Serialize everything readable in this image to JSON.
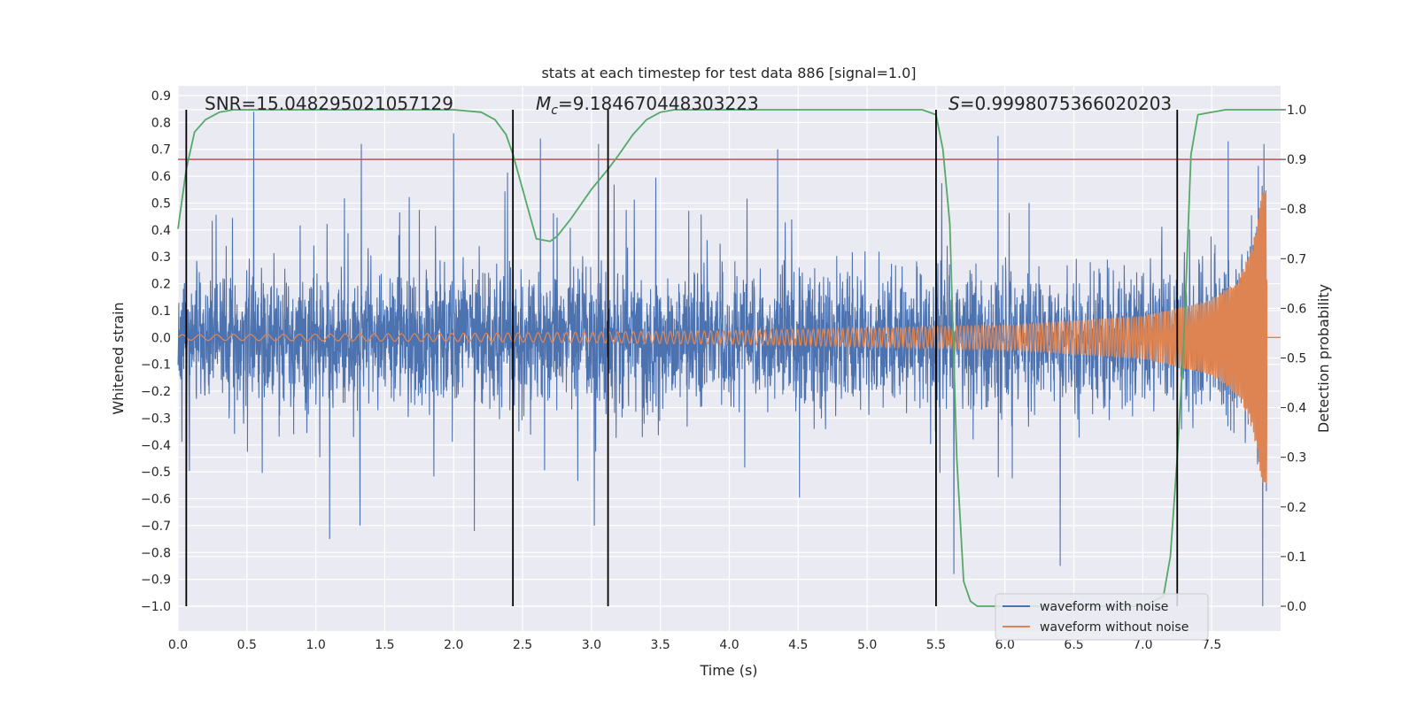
{
  "chart_data": {
    "type": "line",
    "title": "stats at each timestep for test data 886 [signal=1.0]",
    "xlabel": "Time (s)",
    "ylabel": "Whitened strain",
    "ylabel_right": "Detection probability",
    "xlim": [
      0.0,
      8.0
    ],
    "ylim": [
      -1.0,
      1.0
    ],
    "ylim_right": [
      0.0,
      1.0
    ],
    "x_ticks": [
      "0.0",
      "0.5",
      "1.0",
      "1.5",
      "2.0",
      "2.5",
      "3.0",
      "3.5",
      "4.0",
      "4.5",
      "5.0",
      "5.5",
      "6.0",
      "6.5",
      "7.0",
      "7.5"
    ],
    "y_ticks": [
      "−1.0",
      "−0.9",
      "−0.8",
      "−0.7",
      "−0.6",
      "−0.5",
      "−0.4",
      "−0.3",
      "−0.2",
      "−0.1",
      "0.0",
      "0.1",
      "0.2",
      "0.3",
      "0.4",
      "0.5",
      "0.6",
      "0.7",
      "0.8",
      "0.9"
    ],
    "y_right_ticks": [
      "0.0",
      "0.1",
      "0.2",
      "0.3",
      "0.4",
      "0.5",
      "0.6",
      "0.7",
      "0.8",
      "0.9",
      "1.0"
    ],
    "grid": true,
    "legend_position": "bottom-right",
    "annotations": {
      "snr": "SNR=15.048295021057129",
      "mc_symbol": "M",
      "mc_subscript": "c",
      "mc_value": "=9.184670448303223",
      "s_symbol": "S",
      "s_value": "=0.9998075366020203"
    },
    "threshold": 0.9,
    "vertical_markers": [
      0.06,
      2.43,
      3.12,
      5.5,
      7.25
    ],
    "noise_envelope": {
      "x": [
        0.0,
        1.0,
        2.0,
        3.0,
        4.0,
        5.0,
        5.5,
        6.0,
        6.5,
        7.0,
        7.5,
        7.8,
        7.9
      ],
      "core": [
        0.28,
        0.28,
        0.28,
        0.28,
        0.28,
        0.28,
        0.28,
        0.27,
        0.26,
        0.25,
        0.24,
        0.24,
        0.24
      ]
    },
    "noise_spikes": {
      "x": [
        0.55,
        1.33,
        2.0,
        2.63,
        3.05,
        4.35,
        5.95,
        7.62,
        7.88
      ],
      "y": [
        0.84,
        0.72,
        0.76,
        0.74,
        0.72,
        0.7,
        0.75,
        0.73,
        0.72
      ]
    },
    "noise_dips": {
      "x": [
        1.1,
        1.32,
        2.15,
        3.02,
        5.63,
        6.4,
        7.87
      ],
      "y": [
        -0.75,
        -0.7,
        -0.72,
        -0.7,
        -0.88,
        -0.85,
        -1.0
      ]
    },
    "chirp": {
      "amp_at": {
        "x": [
          0.0,
          2.0,
          4.0,
          6.0,
          7.0,
          7.5,
          7.7,
          7.8,
          7.87
        ],
        "y": [
          0.01,
          0.015,
          0.025,
          0.045,
          0.08,
          0.14,
          0.22,
          0.35,
          0.55
        ]
      },
      "end_time": 7.9
    },
    "detection_probability": {
      "x": [
        0.0,
        0.06,
        0.12,
        0.2,
        0.3,
        0.4,
        0.6,
        1.0,
        2.0,
        2.2,
        2.3,
        2.38,
        2.43,
        2.5,
        2.6,
        2.7,
        2.75,
        2.85,
        3.0,
        3.12,
        3.2,
        3.3,
        3.4,
        3.5,
        3.6,
        4.0,
        5.0,
        5.4,
        5.5,
        5.55,
        5.6,
        5.65,
        5.7,
        5.75,
        5.8,
        6.0,
        7.0,
        7.15,
        7.2,
        7.25,
        7.3,
        7.35,
        7.4,
        7.6,
        8.0
      ],
      "y": [
        0.76,
        0.88,
        0.955,
        0.98,
        0.995,
        1.0,
        1.0,
        1.0,
        1.0,
        0.995,
        0.98,
        0.95,
        0.91,
        0.84,
        0.74,
        0.735,
        0.745,
        0.78,
        0.84,
        0.88,
        0.91,
        0.95,
        0.98,
        0.995,
        1.0,
        1.0,
        1.0,
        1.0,
        0.99,
        0.92,
        0.77,
        0.3,
        0.05,
        0.01,
        0.0,
        0.0,
        0.0,
        0.02,
        0.1,
        0.3,
        0.55,
        0.91,
        0.99,
        1.0,
        1.0
      ]
    },
    "series": [
      {
        "name": "waveform with noise",
        "color": "#4c72b0"
      },
      {
        "name": "waveform without noise",
        "color": "#dd8452"
      },
      {
        "color": "#55a868"
      },
      {
        "color": "#c44e52"
      }
    ]
  }
}
